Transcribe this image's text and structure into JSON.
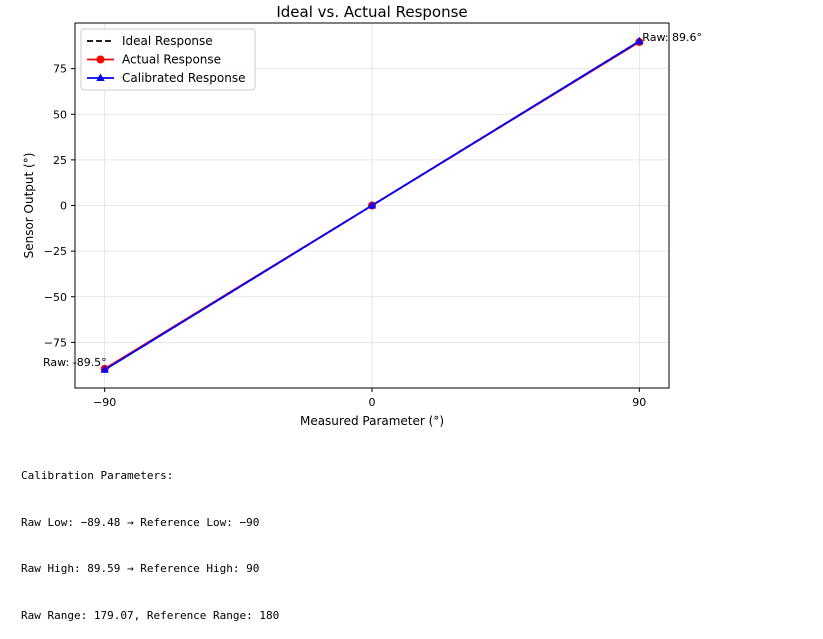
{
  "chart_data": {
    "type": "line",
    "title": "Ideal vs. Actual Response",
    "xlabel": "Measured Parameter (°)",
    "ylabel": "Sensor Output (°)",
    "xlim": [
      -100,
      100
    ],
    "ylim": [
      -100,
      100
    ],
    "xticks": [
      -90,
      0,
      90
    ],
    "xtick_labels": [
      "−90",
      "0",
      "90"
    ],
    "yticks": [
      -75,
      -50,
      -25,
      0,
      25,
      50,
      75
    ],
    "ytick_labels": [
      "−75",
      "−50",
      "−25",
      "0",
      "25",
      "50",
      "75"
    ],
    "grid": true,
    "legend_position": "top-left",
    "series": [
      {
        "name": "Ideal Response",
        "color": "#000000",
        "style": "dashed",
        "marker": "none",
        "x": [
          -90,
          0,
          90
        ],
        "y": [
          -90,
          0,
          90
        ]
      },
      {
        "name": "Actual Response",
        "color": "#ff0000",
        "style": "solid",
        "marker": "circle",
        "x": [
          -90,
          0,
          90
        ],
        "y": [
          -89.48,
          0,
          89.59
        ]
      },
      {
        "name": "Calibrated Response",
        "color": "#0000ff",
        "style": "solid",
        "marker": "triangle",
        "x": [
          -90,
          0,
          90
        ],
        "y": [
          -90,
          0,
          90
        ]
      }
    ],
    "annotations": [
      {
        "text": "Raw: 89.6°",
        "x": 90,
        "y": 89.59,
        "anchor": "right"
      },
      {
        "text": "Raw: -89.5°",
        "x": -90,
        "y": -89.48,
        "anchor": "left"
      }
    ]
  },
  "params": {
    "heading": "Calibration Parameters:",
    "lines": [
      "Raw Low: −89.48 → Reference Low: −90",
      "Raw High: 89.59 → Reference High: 90",
      "Raw Range: 179.07, Reference Range: 180"
    ]
  }
}
